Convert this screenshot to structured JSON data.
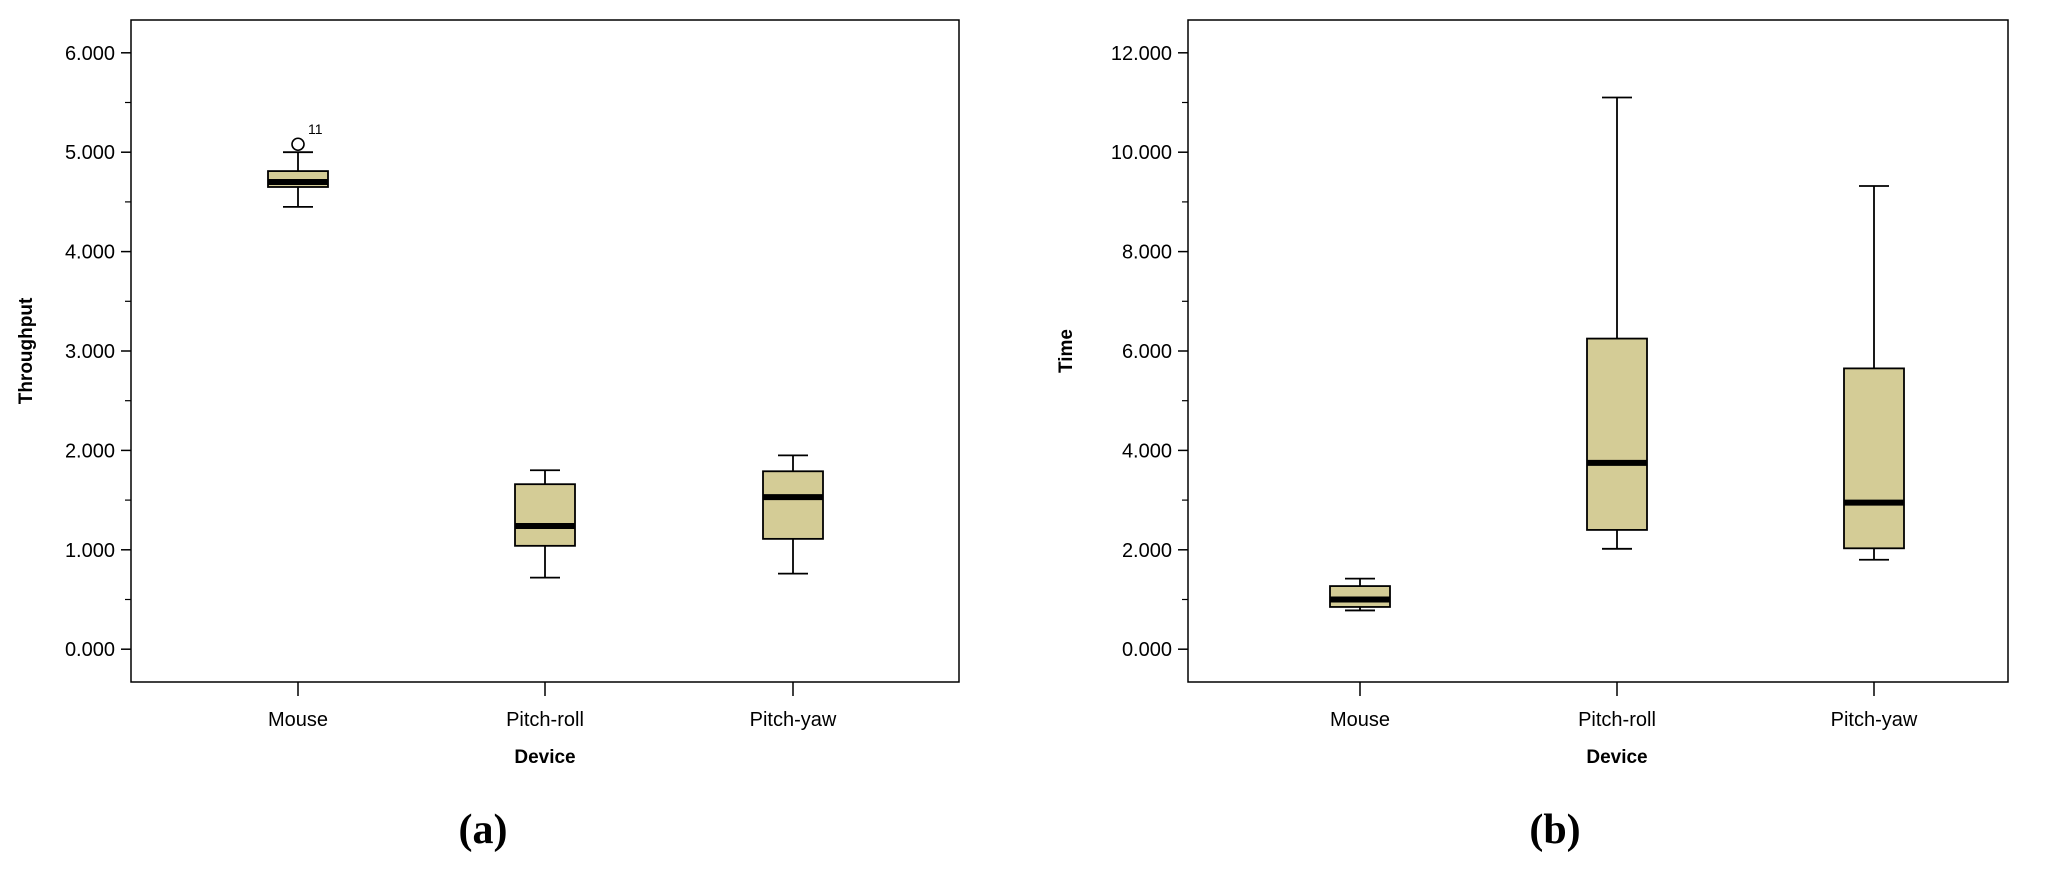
{
  "chart_data": [
    {
      "type": "boxplot",
      "panel_label": "(a)",
      "xlabel": "Device",
      "ylabel": "Throughput",
      "ylim": [
        -0.33,
        6.33
      ],
      "yticks": [
        "0.000",
        "1.000",
        "2.000",
        "3.000",
        "4.000",
        "5.000",
        "6.000"
      ],
      "categories": [
        "Mouse",
        "Pitch-roll",
        "Pitch-yaw"
      ],
      "box_color": "#d4cc96",
      "boxes": [
        {
          "category": "Mouse",
          "min": 4.45,
          "q1": 4.65,
          "median": 4.7,
          "q3": 4.81,
          "max": 5.0,
          "outliers": [
            {
              "value": 5.08,
              "label": "11"
            }
          ]
        },
        {
          "category": "Pitch-roll",
          "min": 0.72,
          "q1": 1.04,
          "median": 1.24,
          "q3": 1.66,
          "max": 1.8,
          "outliers": []
        },
        {
          "category": "Pitch-yaw",
          "min": 0.76,
          "q1": 1.11,
          "median": 1.53,
          "q3": 1.79,
          "max": 1.95,
          "outliers": []
        }
      ]
    },
    {
      "type": "boxplot",
      "panel_label": "(b)",
      "xlabel": "Device",
      "ylabel": "Time",
      "ylim": [
        -0.66,
        12.66
      ],
      "yticks": [
        "0.000",
        "2.000",
        "4.000",
        "6.000",
        "8.000",
        "10.000",
        "12.000"
      ],
      "categories": [
        "Mouse",
        "Pitch-roll",
        "Pitch-yaw"
      ],
      "box_color": "#d4cc96",
      "boxes": [
        {
          "category": "Mouse",
          "min": 0.78,
          "q1": 0.85,
          "median": 1.0,
          "q3": 1.27,
          "max": 1.42,
          "outliers": []
        },
        {
          "category": "Pitch-roll",
          "min": 2.02,
          "q1": 2.4,
          "median": 3.75,
          "q3": 6.25,
          "max": 11.1,
          "outliers": []
        },
        {
          "category": "Pitch-yaw",
          "min": 1.8,
          "q1": 2.03,
          "median": 2.95,
          "q3": 5.65,
          "max": 9.32,
          "outliers": []
        }
      ]
    }
  ]
}
